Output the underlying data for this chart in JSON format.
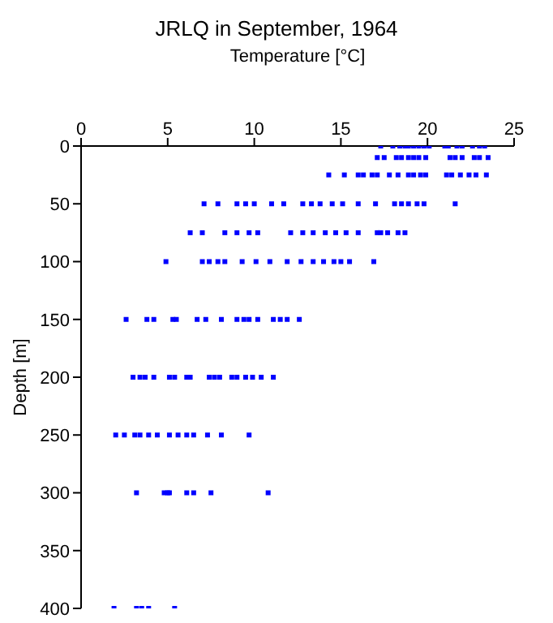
{
  "chart_data": {
    "type": "scatter",
    "title": "JRLQ in September, 1964",
    "xlabel": "Temperature [°C]",
    "ylabel": "Depth [m]",
    "x": [
      17.3,
      18.0,
      18.4,
      18.7,
      18.9,
      19.2,
      19.5,
      19.8,
      20.1,
      21.0,
      21.2,
      21.7,
      22.0,
      22.6,
      23.0,
      23.3,
      17.1,
      17.5,
      18.2,
      18.5,
      18.9,
      19.2,
      19.5,
      19.9,
      21.3,
      21.6,
      22.0,
      22.7,
      23.0,
      23.5,
      14.3,
      15.2,
      16.0,
      16.3,
      16.8,
      17.1,
      17.8,
      18.3,
      18.9,
      19.2,
      19.6,
      19.9,
      21.1,
      21.4,
      21.9,
      22.4,
      22.8,
      23.4,
      7.1,
      7.9,
      9.0,
      9.5,
      10.0,
      11.0,
      11.7,
      12.8,
      13.3,
      13.8,
      14.5,
      15.1,
      16.0,
      17.0,
      18.1,
      18.5,
      18.9,
      19.4,
      19.8,
      21.6,
      6.3,
      7.0,
      8.3,
      9.0,
      9.7,
      10.2,
      12.1,
      12.8,
      13.4,
      14.1,
      14.7,
      15.3,
      16.0,
      17.1,
      17.3,
      17.7,
      18.3,
      18.7,
      4.9,
      7.0,
      7.4,
      7.9,
      8.3,
      9.3,
      10.1,
      10.9,
      11.9,
      12.7,
      13.4,
      14.0,
      14.6,
      15.0,
      15.5,
      16.9,
      2.6,
      3.8,
      4.2,
      5.3,
      5.5,
      6.7,
      7.2,
      8.1,
      9.0,
      9.4,
      9.7,
      10.2,
      11.1,
      11.5,
      11.9,
      12.6,
      3.0,
      3.4,
      3.7,
      4.2,
      5.1,
      5.4,
      6.1,
      6.3,
      7.4,
      7.7,
      8.0,
      8.7,
      9.0,
      9.5,
      9.9,
      10.4,
      11.1,
      2.0,
      2.5,
      3.1,
      3.4,
      3.9,
      4.4,
      5.1,
      5.6,
      6.1,
      6.5,
      7.3,
      8.1,
      9.7,
      3.2,
      4.8,
      5.0,
      5.1,
      6.1,
      6.5,
      7.5,
      10.8,
      1.9,
      3.2,
      3.5,
      3.9,
      5.4
    ],
    "series": [
      {
        "color": "#0000ff",
        "values": [
          0,
          0,
          0,
          0,
          0,
          0,
          0,
          0,
          0,
          0,
          0,
          0,
          0,
          0,
          0,
          0,
          10,
          10,
          10,
          10,
          10,
          10,
          10,
          10,
          10,
          10,
          10,
          10,
          10,
          10,
          25,
          25,
          25,
          25,
          25,
          25,
          25,
          25,
          25,
          25,
          25,
          25,
          25,
          25,
          25,
          25,
          25,
          25,
          50,
          50,
          50,
          50,
          50,
          50,
          50,
          50,
          50,
          50,
          50,
          50,
          50,
          50,
          50,
          50,
          50,
          50,
          50,
          50,
          75,
          75,
          75,
          75,
          75,
          75,
          75,
          75,
          75,
          75,
          75,
          75,
          75,
          75,
          75,
          75,
          75,
          75,
          100,
          100,
          100,
          100,
          100,
          100,
          100,
          100,
          100,
          100,
          100,
          100,
          100,
          100,
          100,
          100,
          150,
          150,
          150,
          150,
          150,
          150,
          150,
          150,
          150,
          150,
          150,
          150,
          150,
          150,
          150,
          150,
          200,
          200,
          200,
          200,
          200,
          200,
          200,
          200,
          200,
          200,
          200,
          200,
          200,
          200,
          200,
          200,
          200,
          250,
          250,
          250,
          250,
          250,
          250,
          250,
          250,
          250,
          250,
          250,
          250,
          250,
          300,
          300,
          300,
          300,
          300,
          300,
          300,
          300,
          400,
          400,
          400,
          400,
          400
        ]
      }
    ],
    "xlim": [
      0,
      25
    ],
    "xticks": [
      0,
      5,
      10,
      15,
      20,
      25
    ],
    "ylim": [
      400,
      0
    ],
    "yticks": [
      0,
      50,
      100,
      150,
      200,
      250,
      300,
      350,
      400
    ],
    "marker": "square",
    "grid": false,
    "legend": false
  }
}
